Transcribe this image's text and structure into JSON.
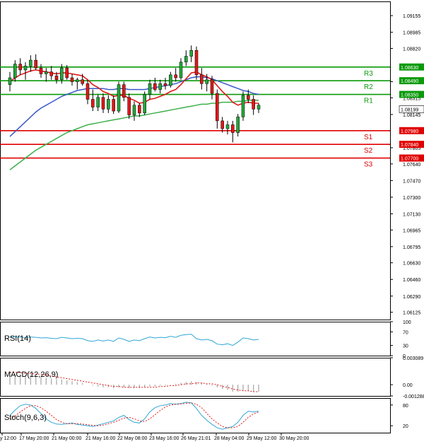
{
  "chart_data": {
    "type": "candlestick",
    "instrument_price_current": 1.08199,
    "main": {
      "ylim": [
        1.0605,
        1.093
      ],
      "price_ticks": [
        "1.09155",
        "1.08985",
        "1.08820",
        "1.08480",
        "1.08315",
        "1.08145",
        "1.07805",
        "1.07640",
        "1.07470",
        "1.07300",
        "1.07130",
        "1.06965",
        "1.06795",
        "1.06630",
        "1.06460",
        "1.06290",
        "1.06125"
      ],
      "price_tick_values": [
        1.09155,
        1.08985,
        1.0882,
        1.0848,
        1.08315,
        1.08145,
        1.07805,
        1.0764,
        1.0747,
        1.073,
        1.0713,
        1.06965,
        1.06795,
        1.0663,
        1.0646,
        1.0629,
        1.06125
      ],
      "levels": [
        {
          "name": "R3",
          "value": 1.0863,
          "label": "1.08630",
          "color": "#0a9a0a"
        },
        {
          "name": "R2",
          "value": 1.0849,
          "label": "1.08490",
          "color": "#0a9a0a"
        },
        {
          "name": "R1",
          "value": 1.0835,
          "label": "1.08350",
          "color": "#0a9a0a"
        },
        {
          "name": "S1",
          "value": 1.0798,
          "label": "1.07980",
          "color": "#e00000"
        },
        {
          "name": "S2",
          "value": 1.0784,
          "label": "1.07840",
          "color": "#e00000"
        },
        {
          "name": "S3",
          "value": 1.077,
          "label": "1.07700",
          "color": "#e00000"
        }
      ],
      "current_label": "1.08199",
      "candles": [
        [
          1.0845,
          1.0858,
          1.0838,
          1.0852
        ],
        [
          1.0852,
          1.087,
          1.0848,
          1.0866
        ],
        [
          1.0866,
          1.0872,
          1.0855,
          1.086
        ],
        [
          1.086,
          1.0868,
          1.085,
          1.0864
        ],
        [
          1.0864,
          1.0875,
          1.0858,
          1.087
        ],
        [
          1.087,
          1.0876,
          1.086,
          1.0862
        ],
        [
          1.0862,
          1.0866,
          1.0852,
          1.0856
        ],
        [
          1.0856,
          1.0862,
          1.0848,
          1.0858
        ],
        [
          1.0858,
          1.0864,
          1.085,
          1.0854
        ],
        [
          1.0854,
          1.0858,
          1.0846,
          1.085
        ],
        [
          1.085,
          1.0866,
          1.0846,
          1.0862
        ],
        [
          1.0862,
          1.0865,
          1.085,
          1.0852
        ],
        [
          1.0852,
          1.0856,
          1.0844,
          1.0848
        ],
        [
          1.0848,
          1.0852,
          1.084,
          1.085
        ],
        [
          1.085,
          1.0856,
          1.0844,
          1.0846
        ],
        [
          1.0846,
          1.085,
          1.0825,
          1.083
        ],
        [
          1.083,
          1.084,
          1.0818,
          1.0822
        ],
        [
          1.0822,
          1.0835,
          1.0818,
          1.0832
        ],
        [
          1.0832,
          1.0836,
          1.0816,
          1.082
        ],
        [
          1.082,
          1.0834,
          1.0816,
          1.083
        ],
        [
          1.083,
          1.0834,
          1.0815,
          1.0818
        ],
        [
          1.0818,
          1.0848,
          1.0816,
          1.0845
        ],
        [
          1.0845,
          1.0848,
          1.0828,
          1.0832
        ],
        [
          1.0832,
          1.0836,
          1.081,
          1.0814
        ],
        [
          1.0814,
          1.0828,
          1.0808,
          1.0824
        ],
        [
          1.0824,
          1.0826,
          1.0812,
          1.0816
        ],
        [
          1.0816,
          1.0838,
          1.0814,
          1.0835
        ],
        [
          1.0835,
          1.085,
          1.083,
          1.0846
        ],
        [
          1.0846,
          1.0852,
          1.0838,
          1.084
        ],
        [
          1.084,
          1.085,
          1.0836,
          1.0846
        ],
        [
          1.0846,
          1.0852,
          1.084,
          1.0844
        ],
        [
          1.0844,
          1.0858,
          1.0842,
          1.0855
        ],
        [
          1.0855,
          1.0862,
          1.0848,
          1.0852
        ],
        [
          1.0852,
          1.0872,
          1.085,
          1.0868
        ],
        [
          1.0868,
          1.088,
          1.0864,
          1.0874
        ],
        [
          1.0874,
          1.0885,
          1.0868,
          1.088
        ],
        [
          1.088,
          1.0884,
          1.085,
          1.0855
        ],
        [
          1.0855,
          1.0862,
          1.084,
          1.0846
        ],
        [
          1.0846,
          1.0856,
          1.0838,
          1.085
        ],
        [
          1.085,
          1.0854,
          1.083,
          1.0836
        ],
        [
          1.0836,
          1.084,
          1.08,
          1.0808
        ],
        [
          1.0808,
          1.0812,
          1.0796,
          1.08
        ],
        [
          1.08,
          1.0808,
          1.0794,
          1.0804
        ],
        [
          1.0804,
          1.0808,
          1.0786,
          1.0796
        ],
        [
          1.0796,
          1.0815,
          1.0792,
          1.0812
        ],
        [
          1.0812,
          1.0838,
          1.0808,
          1.0834
        ],
        [
          1.0834,
          1.084,
          1.0826,
          1.083
        ],
        [
          1.083,
          1.0834,
          1.0814,
          1.082
        ],
        [
          1.082,
          1.0826,
          1.0816,
          1.0824
        ]
      ],
      "ma_red": [
        1.0848,
        1.0852,
        1.0855,
        1.0857,
        1.0859,
        1.086,
        1.0859,
        1.0858,
        1.0857,
        1.0856,
        1.0857,
        1.0857,
        1.0856,
        1.0855,
        1.0854,
        1.085,
        1.0845,
        1.0842,
        1.0838,
        1.0836,
        1.0833,
        1.0834,
        1.0834,
        1.0831,
        1.0829,
        1.0826,
        1.0827,
        1.083,
        1.0831,
        1.0833,
        1.0835,
        1.0838,
        1.084,
        1.0845,
        1.0851,
        1.0857,
        1.0858,
        1.0855,
        1.0853,
        1.085,
        1.0844,
        1.0838,
        1.0833,
        1.0827,
        1.0824,
        1.0826,
        1.0827,
        1.0826,
        1.0826
      ],
      "ma_blue": [
        1.0792,
        1.0797,
        1.0802,
        1.0807,
        1.0812,
        1.0817,
        1.0821,
        1.0824,
        1.0827,
        1.083,
        1.0833,
        1.0835,
        1.0837,
        1.0839,
        1.084,
        1.0841,
        1.0841,
        1.0841,
        1.0841,
        1.084,
        1.084,
        1.0841,
        1.0841,
        1.084,
        1.084,
        1.084,
        1.084,
        1.0841,
        1.0842,
        1.0843,
        1.0844,
        1.0845,
        1.0846,
        1.0848,
        1.085,
        1.0852,
        1.0853,
        1.0853,
        1.0852,
        1.0851,
        1.0849,
        1.0847,
        1.0845,
        1.0843,
        1.0841,
        1.0839,
        1.0838,
        1.0836,
        1.0835
      ],
      "ma_green": [
        1.0758,
        1.0762,
        1.0766,
        1.077,
        1.0774,
        1.0778,
        1.0781,
        1.0784,
        1.0787,
        1.079,
        1.0793,
        1.0796,
        1.0798,
        1.08,
        1.0802,
        1.0804,
        1.0805,
        1.0806,
        1.0807,
        1.0808,
        1.0809,
        1.081,
        1.0811,
        1.0812,
        1.0813,
        1.0813,
        1.0814,
        1.0815,
        1.0816,
        1.0817,
        1.0818,
        1.0819,
        1.082,
        1.0821,
        1.0822,
        1.0823,
        1.0824,
        1.0825,
        1.0825,
        1.0826,
        1.0826,
        1.0827,
        1.0827,
        1.0827,
        1.0828,
        1.0828,
        1.0829,
        1.0829,
        1.0829
      ]
    },
    "rsi": {
      "label": "RSI(14)",
      "ylim": [
        0,
        100
      ],
      "ticks": [
        "100",
        "70",
        "30",
        "0"
      ],
      "tick_values": [
        100,
        70,
        30,
        0
      ],
      "values": [
        54,
        56,
        55,
        53,
        55,
        54,
        52,
        53,
        51,
        50,
        54,
        52,
        50,
        51,
        50,
        44,
        42,
        46,
        43,
        46,
        42,
        52,
        48,
        42,
        46,
        44,
        50,
        55,
        52,
        54,
        53,
        57,
        54,
        60,
        62,
        63,
        50,
        46,
        48,
        44,
        34,
        32,
        35,
        30,
        40,
        52,
        50,
        46,
        48
      ]
    },
    "macd": {
      "label": "MACD(12,26,9)",
      "ylim": [
        -0.001288,
        0.003089
      ],
      "ticks": [
        "0.003089",
        "0.00",
        "-0.001288"
      ],
      "tick_values": [
        0.003089,
        0.0,
        -0.001288
      ],
      "histogram": [
        0.0011,
        0.0012,
        0.0012,
        0.0011,
        0.0011,
        0.001,
        0.0009,
        0.0008,
        0.0007,
        0.0006,
        0.0006,
        0.0005,
        0.0004,
        0.0003,
        0.0002,
        0.0,
        -0.0001,
        -0.0002,
        -0.0003,
        -0.0003,
        -0.0004,
        -0.0003,
        -0.0003,
        -0.0004,
        -0.0004,
        -0.0004,
        -0.0003,
        -0.0002,
        -0.0002,
        -0.0001,
        -0.0001,
        0.0,
        0.0001,
        0.0002,
        0.0003,
        0.0004,
        0.0003,
        0.0002,
        0.0001,
        -0.0001,
        -0.0003,
        -0.0005,
        -0.0006,
        -0.0008,
        -0.0008,
        -0.0007,
        -0.0007,
        -0.0008,
        -0.0008
      ],
      "signal": [
        0.0014,
        0.0014,
        0.0014,
        0.0013,
        0.0013,
        0.0012,
        0.0012,
        0.0011,
        0.001,
        0.0009,
        0.0008,
        0.0007,
        0.0006,
        0.0005,
        0.0004,
        0.0003,
        0.0002,
        0.0001,
        0.0,
        -0.0001,
        -0.0002,
        -0.0002,
        -0.0003,
        -0.0003,
        -0.0003,
        -0.0003,
        -0.0003,
        -0.0003,
        -0.0003,
        -0.0002,
        -0.0002,
        -0.0001,
        -0.0001,
        0.0,
        0.0001,
        0.0001,
        0.0002,
        0.0002,
        0.0001,
        0.0001,
        0.0,
        -0.0002,
        -0.0003,
        -0.0005,
        -0.0006,
        -0.0007,
        -0.0007,
        -0.0008,
        -0.0008
      ]
    },
    "stoch": {
      "label": "Stoch(9,6,3)",
      "ylim": [
        0,
        100
      ],
      "ticks": [
        "80",
        "20"
      ],
      "tick_values": [
        80,
        20
      ],
      "k": [
        50,
        65,
        78,
        82,
        80,
        70,
        55,
        40,
        30,
        25,
        24,
        26,
        28,
        24,
        22,
        20,
        18,
        22,
        26,
        30,
        34,
        44,
        50,
        38,
        30,
        28,
        40,
        60,
        72,
        78,
        80,
        84,
        82,
        84,
        88,
        86,
        70,
        50,
        36,
        24,
        14,
        10,
        14,
        18,
        30,
        50,
        62,
        60,
        62
      ],
      "d": [
        40,
        48,
        60,
        70,
        78,
        78,
        72,
        62,
        50,
        38,
        30,
        26,
        26,
        26,
        25,
        23,
        21,
        20,
        22,
        26,
        30,
        36,
        42,
        44,
        40,
        34,
        32,
        40,
        52,
        64,
        74,
        80,
        82,
        83,
        85,
        86,
        82,
        72,
        56,
        40,
        28,
        18,
        14,
        14,
        18,
        30,
        44,
        54,
        60
      ]
    },
    "x_labels": [
      "y 12:00",
      "17 May 20:00",
      "21 May 00:00",
      "21 May 16:00",
      "22 May 08:00",
      "23 May 16:00",
      "26 May 21:01",
      "28 May 04:00",
      "29 May 12:00",
      "30 May 20:00"
    ]
  }
}
